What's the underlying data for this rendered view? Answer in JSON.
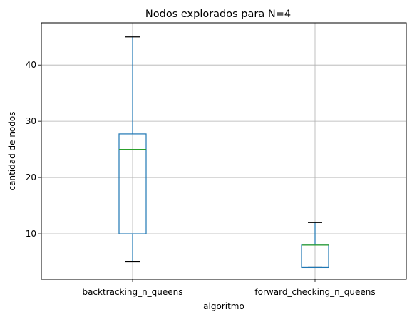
{
  "chart_data": {
    "type": "box",
    "title": "Nodos explorados para N=4",
    "xlabel": "algoritmo",
    "ylabel": "cantidad de nodos",
    "ylim": [
      1.9,
      47.5
    ],
    "yticks": [
      10,
      20,
      30,
      40
    ],
    "grid": true,
    "categories": [
      "backtracking_n_queens",
      "forward_checking_n_queens"
    ],
    "boxes": [
      {
        "name": "backtracking_n_queens",
        "whisker_low": 5,
        "q1": 10,
        "median": 25,
        "q3": 27.75,
        "whisker_high": 45
      },
      {
        "name": "forward_checking_n_queens",
        "whisker_low": 4,
        "q1": 4,
        "median": 8,
        "q3": 8,
        "whisker_high": 12
      }
    ],
    "colors": {
      "box": "#1f77b4",
      "median": "#2ca02c",
      "cap": "#000000",
      "grid": "#b0b0b0"
    }
  }
}
